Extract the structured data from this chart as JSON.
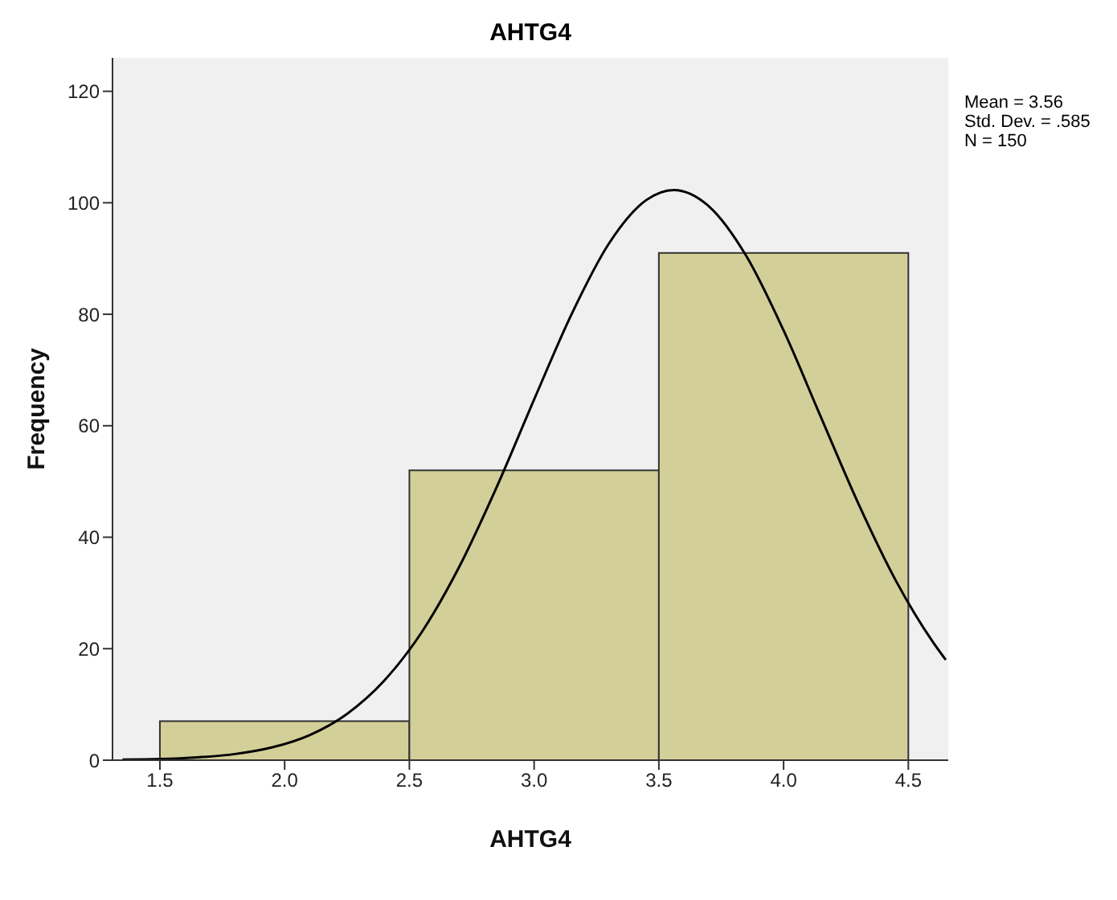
{
  "chart_data": {
    "type": "histogram",
    "title": "AHTG4",
    "xlabel": "AHTG4",
    "ylabel": "Frequency",
    "bins": [
      1.5,
      2.5,
      3.5,
      4.5
    ],
    "values": [
      7,
      52,
      91
    ],
    "color": "#d3cf99",
    "series": [
      {
        "type": "line",
        "color": "#000000",
        "x": [
          1.35,
          1.5,
          1.65,
          1.8,
          1.95,
          2.1,
          2.25,
          2.4,
          2.55,
          2.7,
          2.85,
          3.0,
          3.15,
          3.3,
          3.45,
          3.56,
          3.7,
          3.85,
          4.0,
          4.15,
          4.3,
          4.45,
          4.6,
          4.65
        ],
        "values": [
          0.1,
          0.2,
          0.5,
          1.1,
          2.3,
          4.5,
          8.3,
          14.3,
          23.0,
          34.7,
          49.0,
          64.7,
          80.0,
          92.7,
          100.5,
          102.3,
          99.4,
          90.5,
          77.1,
          61.5,
          46.0,
          32.2,
          21.1,
          18.0
        ]
      }
    ],
    "xlim": [
      1.31,
      4.66
    ],
    "xticks": [
      1.5,
      {
        "value": 2,
        "label": "2.0"
      },
      2.5,
      {
        "value": 3,
        "label": "3.0"
      },
      3.5,
      {
        "value": 4,
        "label": "4.0"
      },
      4.5
    ],
    "ylim": [
      0,
      126
    ],
    "yticks": [
      0,
      20,
      40,
      60,
      80,
      100,
      120
    ],
    "annotations": [
      "Mean = 3.56",
      "Std. Dev. = .585",
      "N = 150"
    ]
  }
}
